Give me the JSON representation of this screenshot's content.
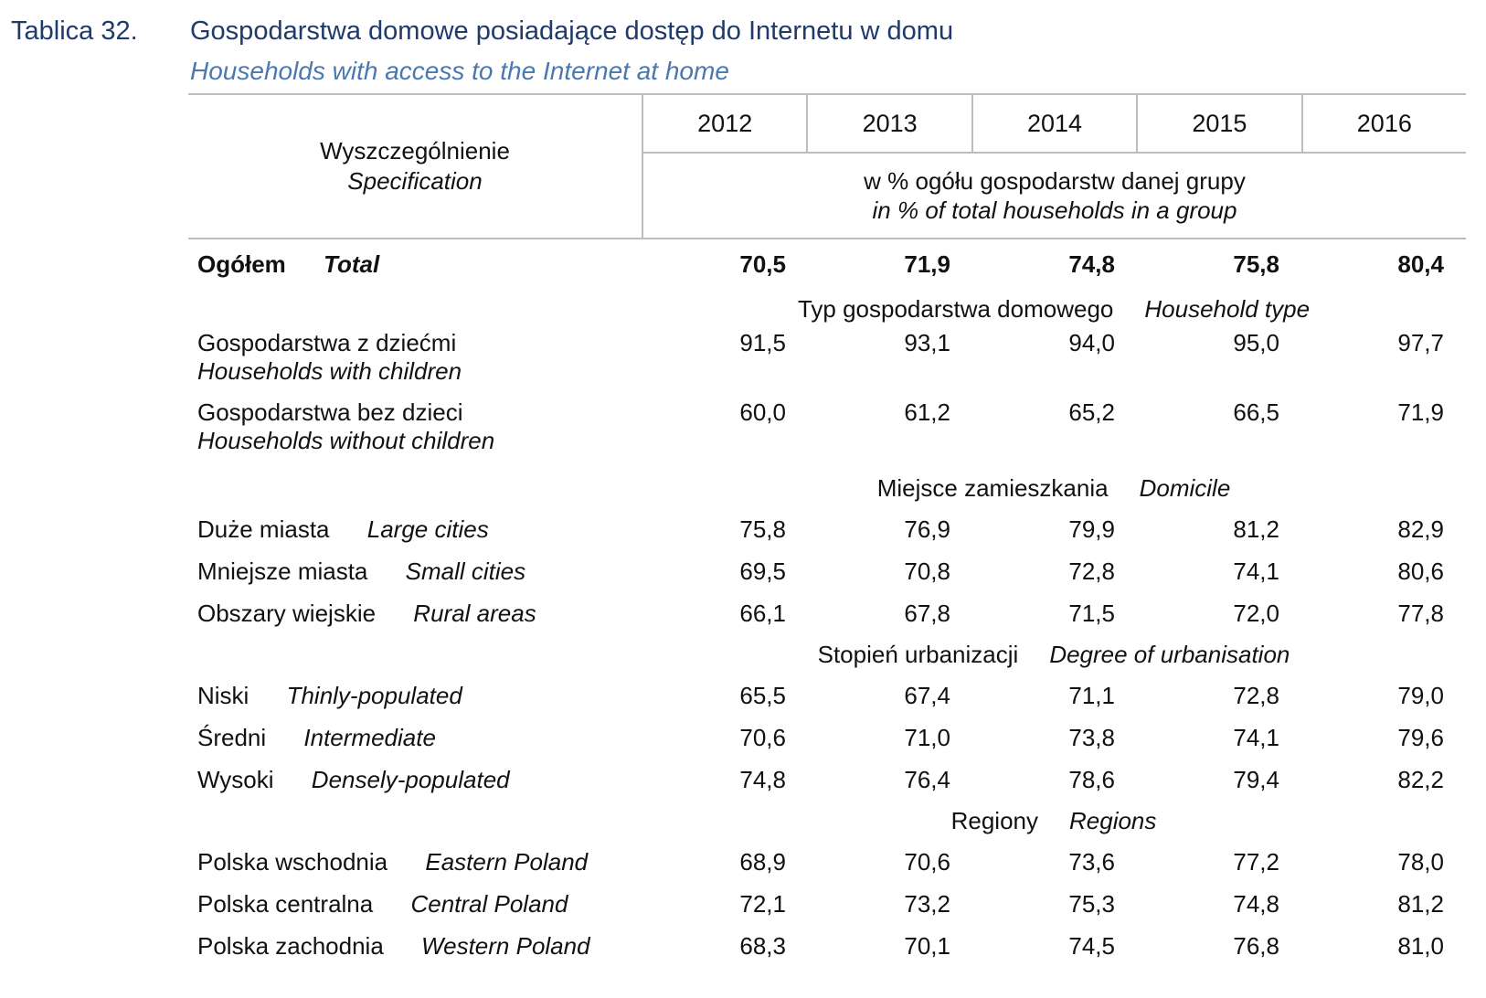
{
  "title": {
    "number": "Tablica 32.",
    "pl": "Gospodarstwa domowe posiadające dostęp do Internetu w domu",
    "en": "Households with access to the Internet at home"
  },
  "header": {
    "spec_pl": "Wyszczególnienie",
    "spec_en": "Specification",
    "years": [
      "2012",
      "2013",
      "2014",
      "2015",
      "2016"
    ],
    "unit_pl": "w % ogółu gospodarstw danej grupy",
    "unit_en": "in % of total households in a group"
  },
  "total": {
    "pl": "Ogółem",
    "en": "Total",
    "values": [
      "70,5",
      "71,9",
      "74,8",
      "75,8",
      "80,4"
    ]
  },
  "sections": [
    {
      "pl": "Typ gospodarstwa domowego",
      "en": "Household type",
      "rows": [
        {
          "pl": "Gospodarstwa z dziećmi",
          "en": "Households with children",
          "values": [
            "91,5",
            "93,1",
            "94,0",
            "95,0",
            "97,7"
          ]
        },
        {
          "pl": "Gospodarstwa bez dzieci",
          "en": "Households without children",
          "values": [
            "60,0",
            "61,2",
            "65,2",
            "66,5",
            "71,9"
          ]
        }
      ]
    },
    {
      "pl": "Miejsce zamieszkania",
      "en": "Domicile",
      "rows": [
        {
          "pl": "Duże miasta",
          "en": "Large cities",
          "values": [
            "75,8",
            "76,9",
            "79,9",
            "81,2",
            "82,9"
          ]
        },
        {
          "pl": "Mniejsze miasta",
          "en": "Small cities",
          "values": [
            "69,5",
            "70,8",
            "72,8",
            "74,1",
            "80,6"
          ]
        },
        {
          "pl": "Obszary wiejskie",
          "en": "Rural areas",
          "values": [
            "66,1",
            "67,8",
            "71,5",
            "72,0",
            "77,8"
          ]
        }
      ]
    },
    {
      "pl": "Stopień urbanizacji",
      "en": "Degree of urbanisation",
      "rows": [
        {
          "pl": "Niski",
          "en": "Thinly-populated",
          "values": [
            "65,5",
            "67,4",
            "71,1",
            "72,8",
            "79,0"
          ]
        },
        {
          "pl": "Średni",
          "en": "Intermediate",
          "values": [
            "70,6",
            "71,0",
            "73,8",
            "74,1",
            "79,6"
          ]
        },
        {
          "pl": "Wysoki",
          "en": "Densely-populated",
          "values": [
            "74,8",
            "76,4",
            "78,6",
            "79,4",
            "82,2"
          ]
        }
      ]
    },
    {
      "pl": "Regiony",
      "en": "Regions",
      "rows": [
        {
          "pl": "Polska wschodnia",
          "en": "Eastern Poland",
          "values": [
            "68,9",
            "70,6",
            "73,6",
            "77,2",
            "78,0"
          ]
        },
        {
          "pl": "Polska centralna",
          "en": "Central Poland",
          "values": [
            "72,1",
            "73,2",
            "75,3",
            "74,8",
            "81,2"
          ]
        },
        {
          "pl": "Polska zachodnia",
          "en": "Western Poland",
          "values": [
            "68,3",
            "70,1",
            "74,5",
            "76,8",
            "81,0"
          ]
        }
      ]
    }
  ]
}
